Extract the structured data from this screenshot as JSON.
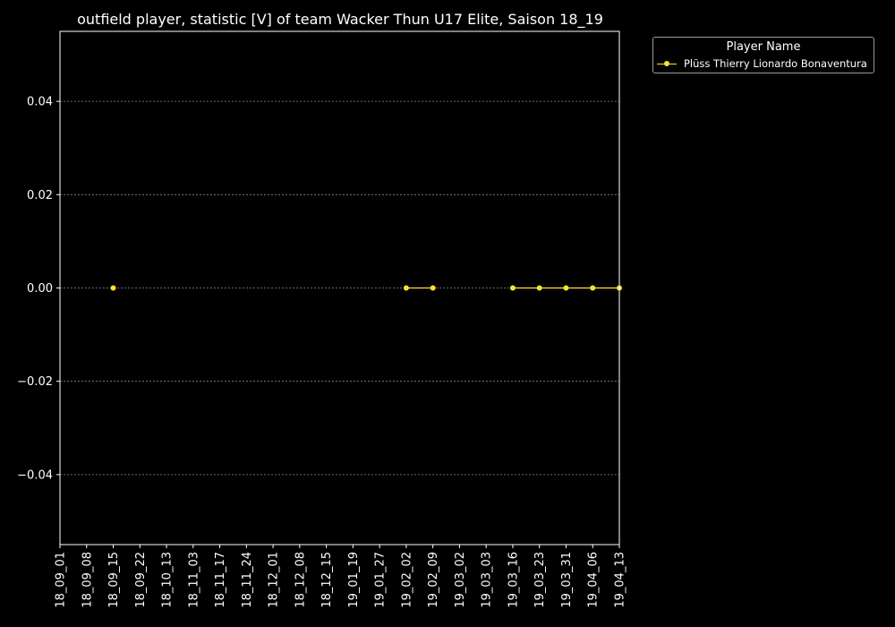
{
  "chart_data": {
    "type": "line",
    "title": "outfield player, statistic [V] of team Wacker Thun U17 Elite, Saison 18_19",
    "xlabel": "",
    "ylabel": "",
    "categories": [
      "18_09_01",
      "18_09_08",
      "18_09_15",
      "18_09_22",
      "18_10_13",
      "18_11_03",
      "18_11_17",
      "18_11_24",
      "18_12_01",
      "18_12_08",
      "18_12_15",
      "19_01_19",
      "19_01_27",
      "19_02_02",
      "19_02_09",
      "19_03_02",
      "19_03_03",
      "19_03_16",
      "19_03_23",
      "19_03_31",
      "19_04_06",
      "19_04_13"
    ],
    "ylim": [
      -0.055,
      0.055
    ],
    "yticks": [
      -0.04,
      -0.02,
      0.0,
      0.02,
      0.04
    ],
    "ytick_labels": [
      "−0.04",
      "−0.02",
      "0.00",
      "0.02",
      "0.04"
    ],
    "grid": true,
    "legend_title": "Player Name",
    "legend_position": "outside-top-right",
    "series": [
      {
        "name": "Plüss Thierry Lionardo Bonaventura",
        "color": "#ffe033",
        "values": [
          null,
          null,
          0,
          null,
          null,
          null,
          null,
          null,
          null,
          null,
          null,
          null,
          null,
          0,
          0,
          null,
          null,
          0,
          0,
          0,
          0,
          0
        ]
      }
    ]
  }
}
